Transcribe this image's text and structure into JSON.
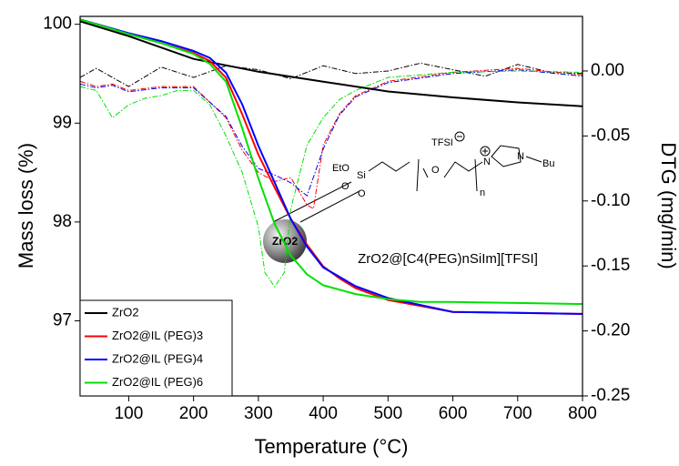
{
  "chart_data": {
    "type": "line",
    "xlabel": "Temperature (°C)",
    "ylabel": "Mass loss (%)",
    "y2label": "DTG (mg/min)",
    "xlim": [
      25,
      800
    ],
    "xticks": [
      100,
      200,
      300,
      400,
      500,
      600,
      700,
      800
    ],
    "ylim": [
      96.24,
      100.08
    ],
    "yticks": [
      97,
      98,
      99,
      100
    ],
    "y2lim": [
      -0.25,
      0.042
    ],
    "y2ticks": [
      {
        "value": 0,
        "label": "0.00"
      },
      {
        "value": -0.05,
        "label": "-0.05"
      },
      {
        "value": -0.1,
        "label": "-0.10"
      },
      {
        "value": -0.15,
        "label": "-0.15"
      },
      {
        "value": -0.2,
        "label": "-0.20"
      },
      {
        "value": -0.25,
        "label": "-0.25"
      }
    ],
    "legend": "lower left",
    "series": [
      {
        "name": "ZrO2",
        "color": "#000000",
        "x": [
          25,
          100,
          200,
          300,
          400,
          500,
          600,
          700,
          800
        ],
        "values": [
          100.03,
          99.88,
          99.65,
          99.52,
          99.42,
          99.32,
          99.26,
          99.21,
          99.17
        ]
      },
      {
        "name": "ZrO2@IL (PEG)3",
        "color": "#ff0000",
        "x": [
          25,
          100,
          150,
          200,
          225,
          250,
          275,
          300,
          325,
          350,
          375,
          400,
          425,
          450,
          500,
          550,
          600,
          700,
          800
        ],
        "values": [
          100.05,
          99.9,
          99.81,
          99.71,
          99.63,
          99.46,
          99.09,
          98.68,
          98.35,
          98.03,
          97.77,
          97.55,
          97.43,
          97.33,
          97.21,
          97.15,
          97.09,
          97.08,
          97.07
        ]
      },
      {
        "name": "ZrO2@IL (PEG)4",
        "color": "#0000ff",
        "x": [
          25,
          100,
          150,
          200,
          225,
          250,
          275,
          300,
          325,
          350,
          375,
          400,
          450,
          500,
          550,
          600,
          700,
          800
        ],
        "values": [
          100.05,
          99.91,
          99.83,
          99.73,
          99.66,
          99.51,
          99.19,
          98.77,
          98.4,
          98.03,
          97.75,
          97.54,
          97.35,
          97.23,
          97.16,
          97.09,
          97.08,
          97.07
        ]
      },
      {
        "name": "ZrO2@IL (PEG)6",
        "color": "#00e000",
        "x": [
          25,
          100,
          150,
          200,
          225,
          250,
          275,
          300,
          325,
          350,
          375,
          400,
          450,
          500,
          550,
          600,
          700,
          800
        ],
        "values": [
          100.05,
          99.9,
          99.81,
          99.7,
          99.6,
          99.42,
          98.95,
          98.44,
          97.98,
          97.66,
          97.47,
          97.36,
          97.27,
          97.22,
          97.19,
          97.19,
          97.18,
          97.17
        ]
      }
    ],
    "dtg_series": [
      {
        "color": "#000000",
        "axis": "y2",
        "dash": "dash-dot",
        "x": [
          25,
          50,
          100,
          150,
          200,
          250,
          300,
          350,
          400,
          450,
          500,
          550,
          600,
          650,
          700,
          750,
          800
        ],
        "values": [
          -0.005,
          0.002,
          -0.012,
          0.003,
          -0.005,
          0.004,
          0.001,
          -0.006,
          0.004,
          -0.002,
          0,
          0.006,
          0.001,
          -0.004,
          0.005,
          -0.001,
          -0.002
        ]
      },
      {
        "color": "#ff0000",
        "axis": "y2",
        "dash": "dash-dot",
        "x": [
          25,
          50,
          75,
          100,
          150,
          200,
          250,
          275,
          300,
          325,
          350,
          375,
          385,
          400,
          425,
          450,
          500,
          600,
          700,
          800
        ],
        "values": [
          -0.008,
          -0.012,
          -0.01,
          -0.015,
          -0.012,
          -0.012,
          -0.036,
          -0.061,
          -0.078,
          -0.085,
          -0.082,
          -0.103,
          -0.106,
          -0.057,
          -0.033,
          -0.019,
          -0.008,
          -0.001,
          0.002,
          -0.003
        ]
      },
      {
        "color": "#0000ff",
        "axis": "y2",
        "dash": "dash-dot",
        "x": [
          25,
          50,
          75,
          100,
          150,
          200,
          250,
          275,
          300,
          325,
          350,
          375,
          400,
          425,
          450,
          500,
          600,
          700,
          800
        ],
        "values": [
          -0.01,
          -0.013,
          -0.011,
          -0.016,
          -0.013,
          -0.013,
          -0.035,
          -0.058,
          -0.075,
          -0.08,
          -0.086,
          -0.096,
          -0.06,
          -0.034,
          -0.02,
          -0.009,
          -0.002,
          0.001,
          -0.004
        ]
      },
      {
        "color": "#00e000",
        "axis": "y2",
        "dash": "dash-dot",
        "x": [
          25,
          50,
          75,
          100,
          125,
          150,
          175,
          200,
          225,
          250,
          275,
          300,
          310,
          325,
          340,
          350,
          375,
          400,
          425,
          450,
          500,
          600,
          700,
          800
        ],
        "values": [
          -0.012,
          -0.015,
          -0.036,
          -0.026,
          -0.021,
          -0.019,
          -0.015,
          -0.015,
          -0.026,
          -0.05,
          -0.078,
          -0.12,
          -0.155,
          -0.166,
          -0.155,
          -0.106,
          -0.057,
          -0.036,
          -0.022,
          -0.015,
          -0.005,
          -0.001,
          0,
          -0.001
        ]
      }
    ],
    "annotations": {
      "caption": "ZrO2@[C4(PEG)nSiIm][TFSI]",
      "core": "ZrO2",
      "eto": "EtO",
      "si": "Si",
      "o1": "O",
      "o2": "O",
      "o3": "O",
      "anion": "TFSI",
      "n_rep": "n",
      "n1": "N",
      "n2": "N",
      "bu": "Bu"
    }
  }
}
